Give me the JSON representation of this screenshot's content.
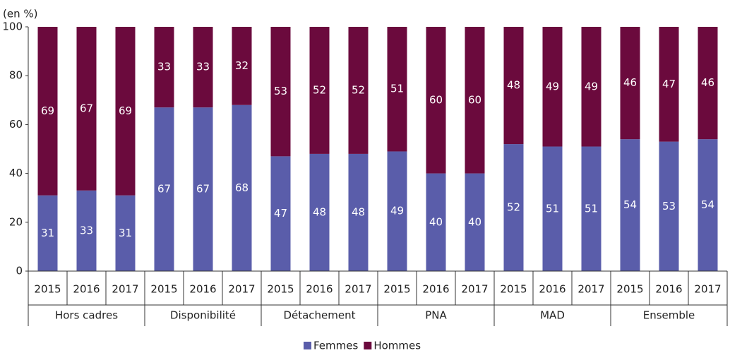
{
  "chart_data": {
    "type": "stacked_bar",
    "y_label": "(en %)",
    "categories": [
      "2015",
      "2016",
      "2017",
      "2015",
      "2016",
      "2017",
      "2015",
      "2016",
      "2017",
      "2015",
      "2016",
      "2017",
      "2015",
      "2016",
      "2017",
      "2015",
      "2016",
      "2017"
    ],
    "groups": [
      "Hors cadres",
      "Disponibilité",
      "Détachement",
      "PNA",
      "MAD",
      "Ensemble"
    ],
    "series": [
      {
        "name": "Femmes",
        "color": "#5a5daa",
        "values": [
          31,
          33,
          31,
          67,
          67,
          68,
          47,
          48,
          48,
          49,
          40,
          40,
          52,
          51,
          51,
          54,
          53,
          54
        ]
      },
      {
        "name": "Hommes",
        "color": "#6b0a3d",
        "values": [
          69,
          67,
          69,
          33,
          33,
          32,
          53,
          52,
          52,
          51,
          60,
          60,
          48,
          49,
          49,
          46,
          47,
          46
        ]
      }
    ],
    "ylim": [
      0,
      100
    ],
    "yticks": [
      0,
      20,
      40,
      60,
      80,
      100
    ]
  }
}
